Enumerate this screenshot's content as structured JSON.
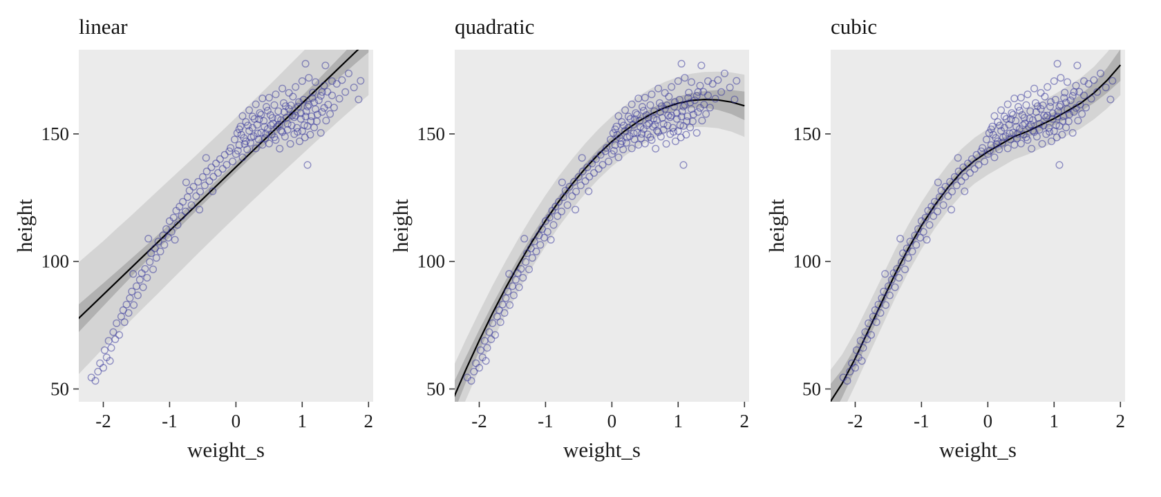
{
  "chart_data": {
    "type": "scatter",
    "title": "",
    "xlabel": "weight_s",
    "ylabel": "height",
    "xticks": [
      -2,
      -1,
      0,
      1,
      2
    ],
    "yticks": [
      50,
      100,
      150
    ],
    "xlim": [
      -2.37,
      2.07
    ],
    "ylim": [
      45,
      183
    ],
    "legend": "none",
    "grid": "off",
    "colors": {
      "point": "#30309a",
      "line": "#000000",
      "band_inner": "#a6a6a6",
      "band_outer": "#d4d4d4",
      "panel_bg": "#ebebeb",
      "text": "#1a1a1a",
      "tick": "#333333"
    },
    "fit_x": [
      -2.4,
      -2.2,
      -2,
      -1.8,
      -1.6,
      -1.4,
      -1.2,
      -1,
      -0.8,
      -0.6,
      -0.4,
      -0.2,
      0,
      0.2,
      0.4,
      0.6,
      0.8,
      1,
      1.2,
      1.4,
      1.6,
      1.8,
      2
    ],
    "panels": [
      {
        "title": "linear",
        "mean": [
          77,
          82,
          87,
          92,
          97,
          102,
          107,
          112,
          117,
          122,
          127,
          132,
          137,
          142,
          147,
          152,
          157,
          162,
          167,
          172,
          177,
          182,
          187
        ],
        "mean_hw": [
          5.5,
          5,
          4.5,
          4,
          3.6,
          3.2,
          2.9,
          2.6,
          2.4,
          2.2,
          2.1,
          2,
          2,
          2,
          2.1,
          2.3,
          2.6,
          2.9,
          3.2,
          3.6,
          4,
          4.5,
          5
        ],
        "pred_hw": [
          22,
          21.5,
          21,
          20.8,
          20.5,
          20.3,
          20.2,
          20,
          19.8,
          19.6,
          19.5,
          19.4,
          19.4,
          19.4,
          19.5,
          19.6,
          19.8,
          20,
          20.2,
          20.5,
          20.8,
          21.2,
          21.8
        ]
      },
      {
        "title": "quadratic",
        "mean": [
          45.7,
          57.7,
          69,
          79.7,
          89.7,
          99.1,
          107.9,
          116,
          123.5,
          130.3,
          136.5,
          142.1,
          147,
          151.3,
          154.9,
          157.9,
          160.3,
          162,
          163.1,
          163.5,
          163.3,
          162.5,
          161
        ],
        "mean_hw": [
          6,
          5,
          4.2,
          3.5,
          3,
          2.7,
          2.5,
          2.3,
          2.2,
          2.1,
          2,
          2,
          2,
          2,
          2.1,
          2.2,
          2.4,
          2.6,
          2.9,
          3.3,
          3.9,
          4.7,
          5.6
        ],
        "pred_hw": [
          12.5,
          11.8,
          11.2,
          10.8,
          10.5,
          10.3,
          10.1,
          10,
          9.9,
          9.8,
          9.8,
          9.8,
          9.8,
          9.8,
          9.9,
          10,
          10.1,
          10.3,
          10.5,
          10.8,
          11.1,
          11.6,
          12.2
        ]
      },
      {
        "title": "cubic",
        "mean": [
          44,
          52,
          62,
          73,
          84,
          95,
          105,
          114,
          122,
          129,
          135,
          139.5,
          143,
          146,
          149,
          151,
          153.5,
          156,
          159,
          162,
          166,
          171,
          177
        ],
        "mean_hw": [
          7,
          5.5,
          4.4,
          3.6,
          3,
          2.7,
          2.5,
          2.3,
          2.2,
          2.1,
          2,
          2,
          2,
          2,
          2.1,
          2.2,
          2.4,
          2.6,
          2.9,
          3.3,
          3.9,
          4.9,
          6.2
        ],
        "pred_hw": [
          12.5,
          11.4,
          10.5,
          10,
          9.7,
          9.5,
          9.3,
          9.2,
          9.1,
          9,
          9,
          9,
          9,
          9,
          9,
          9.1,
          9.2,
          9.4,
          9.6,
          9.9,
          10.3,
          11,
          11.8
        ]
      }
    ],
    "points": [
      [
        -2.18,
        54.5
      ],
      [
        -2.12,
        53.2
      ],
      [
        -2.08,
        56.8
      ],
      [
        -2.05,
        60.1
      ],
      [
        -2.0,
        58.3
      ],
      [
        -1.98,
        65.2
      ],
      [
        -1.95,
        62.4
      ],
      [
        -1.92,
        68.9
      ],
      [
        -1.9,
        61.0
      ],
      [
        -1.88,
        66.1
      ],
      [
        -1.85,
        72.3
      ],
      [
        -1.82,
        69.5
      ],
      [
        -1.8,
        75.8
      ],
      [
        -1.76,
        71.2
      ],
      [
        -1.73,
        78.4
      ],
      [
        -1.7,
        80.9
      ],
      [
        -1.68,
        76.2
      ],
      [
        -1.65,
        83.1
      ],
      [
        -1.62,
        79.8
      ],
      [
        -1.6,
        85.6
      ],
      [
        -1.57,
        88.2
      ],
      [
        -1.55,
        95.1
      ],
      [
        -1.54,
        82.9
      ],
      [
        -1.5,
        90.3
      ],
      [
        -1.48,
        86.7
      ],
      [
        -1.45,
        92.8
      ],
      [
        -1.42,
        95.4
      ],
      [
        -1.4,
        89.9
      ],
      [
        -1.37,
        97.1
      ],
      [
        -1.34,
        93.6
      ],
      [
        -1.32,
        108.9
      ],
      [
        -1.3,
        99.8
      ],
      [
        -1.28,
        103.2
      ],
      [
        -1.25,
        96.9
      ],
      [
        -1.22,
        105.1
      ],
      [
        -1.2,
        101.4
      ],
      [
        -1.17,
        107.8
      ],
      [
        -1.14,
        103.9
      ],
      [
        -1.1,
        110.2
      ],
      [
        -1.08,
        106.5
      ],
      [
        -1.05,
        112.7
      ],
      [
        -1.02,
        109.3
      ],
      [
        -1.0,
        115.8
      ],
      [
        -0.97,
        111.6
      ],
      [
        -0.94,
        117.2
      ],
      [
        -0.92,
        108.5
      ],
      [
        -0.9,
        119.9
      ],
      [
        -0.88,
        114.3
      ],
      [
        -0.85,
        121.5
      ],
      [
        -0.82,
        117.8
      ],
      [
        -0.8,
        123.4
      ],
      [
        -0.76,
        119.6
      ],
      [
        -0.75,
        131.0
      ],
      [
        -0.73,
        125.2
      ],
      [
        -0.7,
        127.8
      ],
      [
        -0.67,
        122.1
      ],
      [
        -0.64,
        129.3
      ],
      [
        -0.6,
        125.6
      ],
      [
        -0.57,
        131.2
      ],
      [
        -0.55,
        120.3
      ],
      [
        -0.54,
        127.4
      ],
      [
        -0.5,
        133.1
      ],
      [
        -0.47,
        129.8
      ],
      [
        -0.45,
        140.6
      ],
      [
        -0.44,
        135.3
      ],
      [
        -0.4,
        131.5
      ],
      [
        -0.37,
        136.9
      ],
      [
        -0.35,
        127.5
      ],
      [
        -0.34,
        133.2
      ],
      [
        -0.3,
        138.4
      ],
      [
        -0.27,
        134.7
      ],
      [
        -0.24,
        140.1
      ],
      [
        -0.2,
        136.3
      ],
      [
        -0.17,
        141.8
      ],
      [
        -0.14,
        137.9
      ],
      [
        -0.1,
        143.2
      ],
      [
        -0.08,
        144.5
      ],
      [
        -0.05,
        139.2
      ],
      [
        -0.02,
        147.8
      ],
      [
        0.0,
        142.1
      ],
      [
        0.02,
        150.3
      ],
      [
        0.05,
        145.6
      ],
      [
        0.07,
        152.9
      ],
      [
        0.1,
        140.8
      ],
      [
        0.12,
        148.4
      ],
      [
        0.15,
        154.7
      ],
      [
        0.17,
        143.9
      ],
      [
        0.2,
        151.2
      ],
      [
        0.22,
        146.5
      ],
      [
        0.25,
        156.8
      ],
      [
        0.27,
        149.1
      ],
      [
        0.3,
        144.3
      ],
      [
        0.32,
        153.6
      ],
      [
        0.34,
        147.9
      ],
      [
        0.36,
        158.2
      ],
      [
        0.38,
        150.5
      ],
      [
        0.4,
        145.7
      ],
      [
        0.42,
        155.1
      ],
      [
        0.44,
        148.3
      ],
      [
        0.46,
        160.6
      ],
      [
        0.48,
        151.9
      ],
      [
        0.5,
        146.2
      ],
      [
        0.52,
        157.4
      ],
      [
        0.54,
        149.8
      ],
      [
        0.56,
        154.1
      ],
      [
        0.58,
        161.3
      ],
      [
        0.6,
        147.6
      ],
      [
        0.62,
        152.8
      ],
      [
        0.64,
        158.9
      ],
      [
        0.66,
        144.2
      ],
      [
        0.68,
        155.4
      ],
      [
        0.7,
        150.7
      ],
      [
        0.72,
        162.1
      ],
      [
        0.74,
        148.9
      ],
      [
        0.76,
        156.3
      ],
      [
        0.78,
        151.6
      ],
      [
        0.8,
        159.8
      ],
      [
        0.82,
        146.1
      ],
      [
        0.84,
        153.3
      ],
      [
        0.86,
        164.6
      ],
      [
        0.88,
        149.9
      ],
      [
        0.9,
        157.2
      ],
      [
        0.92,
        152.4
      ],
      [
        0.94,
        160.7
      ],
      [
        0.96,
        147.1
      ],
      [
        0.98,
        155.9
      ],
      [
        1.0,
        151.1
      ],
      [
        1.02,
        163.4
      ],
      [
        1.04,
        148.6
      ],
      [
        1.06,
        158.8
      ],
      [
        1.08,
        153.1
      ],
      [
        1.1,
        161.4
      ],
      [
        1.12,
        149.7
      ],
      [
        1.14,
        156.9
      ],
      [
        1.16,
        166.2
      ],
      [
        1.18,
        152.5
      ],
      [
        1.2,
        159.7
      ],
      [
        1.22,
        154.9
      ],
      [
        1.25,
        163.2
      ],
      [
        1.28,
        150.4
      ],
      [
        1.3,
        158.6
      ],
      [
        1.33,
        168.9
      ],
      [
        1.36,
        155.2
      ],
      [
        1.39,
        161.5
      ],
      [
        1.42,
        157.8
      ],
      [
        1.45,
        165.1
      ],
      [
        1.48,
        160.3
      ],
      [
        1.52,
        169.6
      ],
      [
        1.56,
        163.8
      ],
      [
        1.6,
        171.1
      ],
      [
        1.65,
        166.4
      ],
      [
        1.7,
        173.7
      ],
      [
        0.03,
        143.4
      ],
      [
        0.08,
        149.7
      ],
      [
        0.13,
        146.0
      ],
      [
        0.18,
        153.3
      ],
      [
        0.23,
        148.6
      ],
      [
        0.28,
        155.9
      ],
      [
        0.33,
        150.2
      ],
      [
        0.38,
        157.5
      ],
      [
        0.43,
        152.8
      ],
      [
        0.48,
        159.1
      ],
      [
        0.53,
        153.4
      ],
      [
        0.58,
        148.7
      ],
      [
        0.63,
        156.0
      ],
      [
        0.68,
        151.3
      ],
      [
        0.73,
        158.6
      ],
      [
        0.78,
        153.9
      ],
      [
        0.83,
        161.2
      ],
      [
        0.88,
        156.5
      ],
      [
        0.93,
        150.8
      ],
      [
        0.98,
        158.1
      ],
      [
        1.03,
        153.4
      ],
      [
        1.08,
        160.7
      ],
      [
        1.13,
        155.0
      ],
      [
        1.18,
        162.3
      ],
      [
        1.23,
        157.6
      ],
      [
        1.28,
        164.9
      ],
      [
        1.33,
        160.2
      ],
      [
        1.38,
        166.5
      ],
      [
        0.05,
        151.8
      ],
      [
        0.15,
        147.1
      ],
      [
        0.25,
        152.4
      ],
      [
        0.35,
        155.7
      ],
      [
        0.45,
        150.0
      ],
      [
        0.55,
        156.3
      ],
      [
        0.65,
        153.6
      ],
      [
        0.75,
        160.9
      ],
      [
        0.85,
        157.2
      ],
      [
        0.95,
        162.5
      ],
      [
        1.05,
        156.8
      ],
      [
        1.15,
        164.1
      ],
      [
        1.3,
        166.4
      ],
      [
        1.45,
        170.7
      ],
      [
        0.1,
        157.0
      ],
      [
        0.2,
        159.3
      ],
      [
        0.3,
        161.6
      ],
      [
        0.4,
        163.9
      ],
      [
        0.5,
        164.2
      ],
      [
        0.6,
        165.5
      ],
      [
        0.7,
        167.8
      ],
      [
        0.8,
        166.1
      ],
      [
        0.9,
        168.4
      ],
      [
        1.0,
        170.7
      ],
      [
        1.1,
        172.0
      ],
      [
        1.2,
        170.3
      ],
      [
        1.05,
        177.5
      ],
      [
        1.35,
        176.8
      ],
      [
        1.08,
        137.8
      ],
      [
        1.78,
        168.2
      ],
      [
        1.85,
        163.5
      ],
      [
        1.88,
        170.8
      ]
    ]
  }
}
